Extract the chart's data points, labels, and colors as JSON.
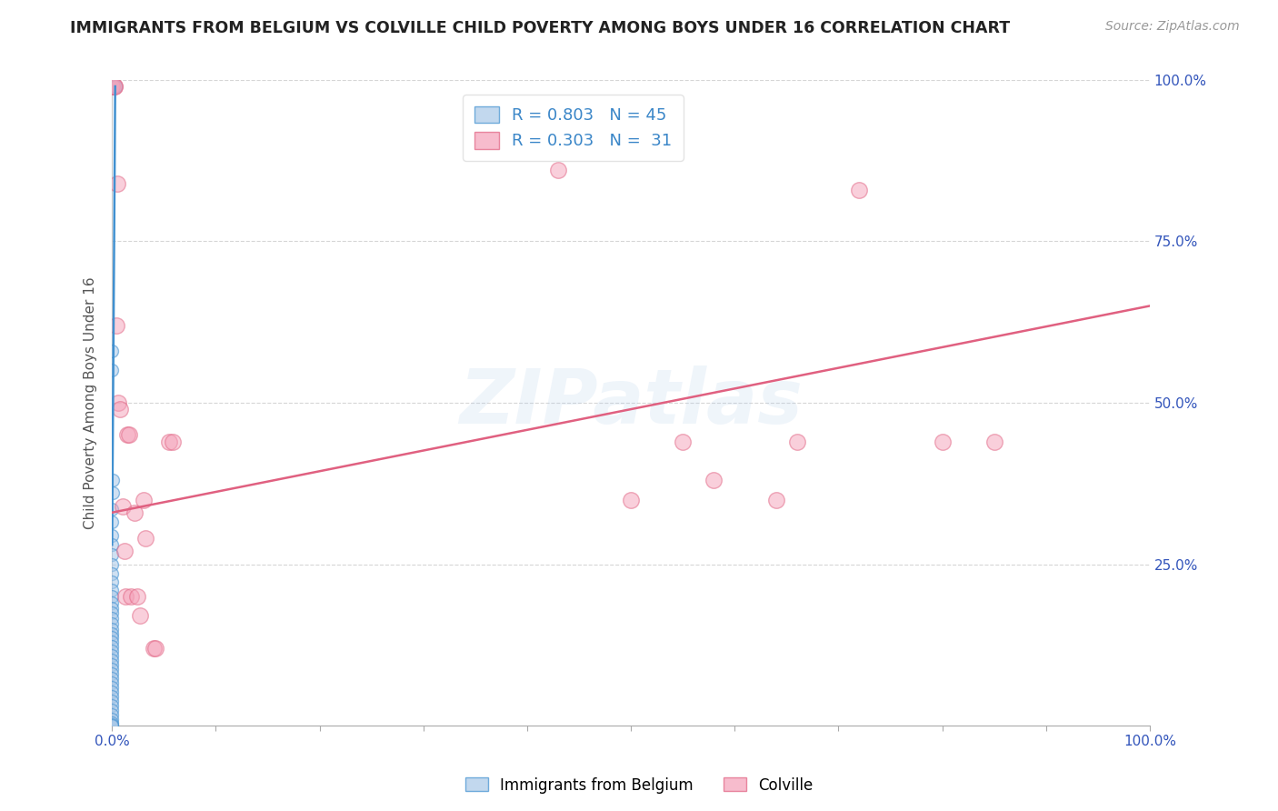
{
  "title": "IMMIGRANTS FROM BELGIUM VS COLVILLE CHILD POVERTY AMONG BOYS UNDER 16 CORRELATION CHART",
  "source": "Source: ZipAtlas.com",
  "ylabel": "Child Poverty Among Boys Under 16",
  "right_yticks": [
    "100.0%",
    "75.0%",
    "50.0%",
    "25.0%"
  ],
  "right_ytick_vals": [
    1.0,
    0.75,
    0.5,
    0.25
  ],
  "watermark": "ZIPatlas",
  "blue_color": "#a8c8e8",
  "pink_color": "#f4a0b8",
  "blue_line_color": "#4090d0",
  "pink_line_color": "#e06080",
  "blue_scatter": [
    [
      0.0,
      0.58
    ],
    [
      0.0,
      0.55
    ],
    [
      0.0003,
      0.38
    ],
    [
      0.0003,
      0.36
    ],
    [
      0.0,
      0.335
    ],
    [
      0.0,
      0.315
    ],
    [
      0.0001,
      0.295
    ],
    [
      0.0001,
      0.28
    ],
    [
      0.0,
      0.265
    ],
    [
      0.0001,
      0.25
    ],
    [
      0.0,
      0.235
    ],
    [
      0.0001,
      0.222
    ],
    [
      0.0,
      0.21
    ],
    [
      0.0001,
      0.2
    ],
    [
      0.0,
      0.19
    ],
    [
      0.0001,
      0.182
    ],
    [
      0.0,
      0.174
    ],
    [
      0.0001,
      0.166
    ],
    [
      0.0,
      0.158
    ],
    [
      0.0001,
      0.15
    ],
    [
      0.0,
      0.143
    ],
    [
      0.0001,
      0.136
    ],
    [
      0.0,
      0.129
    ],
    [
      0.0001,
      0.122
    ],
    [
      0.0,
      0.115
    ],
    [
      0.0001,
      0.108
    ],
    [
      0.0,
      0.101
    ],
    [
      0.0001,
      0.094
    ],
    [
      0.0,
      0.087
    ],
    [
      0.0001,
      0.08
    ],
    [
      0.0,
      0.073
    ],
    [
      0.0001,
      0.066
    ],
    [
      0.0,
      0.059
    ],
    [
      0.0001,
      0.052
    ],
    [
      0.0,
      0.045
    ],
    [
      0.0001,
      0.038
    ],
    [
      0.0,
      0.031
    ],
    [
      0.0001,
      0.024
    ],
    [
      0.0,
      0.017
    ],
    [
      0.0001,
      0.01
    ],
    [
      0.0,
      0.005
    ],
    [
      0.0001,
      0.002
    ],
    [
      0.0,
      0.0
    ],
    [
      0.003,
      0.99
    ],
    [
      0.0032,
      0.99
    ]
  ],
  "pink_scatter": [
    [
      0.0,
      0.99
    ],
    [
      0.002,
      0.99
    ],
    [
      0.002,
      0.99
    ],
    [
      0.004,
      0.62
    ],
    [
      0.005,
      0.84
    ],
    [
      0.006,
      0.5
    ],
    [
      0.008,
      0.49
    ],
    [
      0.01,
      0.34
    ],
    [
      0.012,
      0.27
    ],
    [
      0.013,
      0.2
    ],
    [
      0.015,
      0.45
    ],
    [
      0.016,
      0.45
    ],
    [
      0.018,
      0.2
    ],
    [
      0.022,
      0.33
    ],
    [
      0.024,
      0.2
    ],
    [
      0.027,
      0.17
    ],
    [
      0.03,
      0.35
    ],
    [
      0.032,
      0.29
    ],
    [
      0.04,
      0.12
    ],
    [
      0.042,
      0.12
    ],
    [
      0.055,
      0.44
    ],
    [
      0.058,
      0.44
    ],
    [
      0.43,
      0.86
    ],
    [
      0.5,
      0.35
    ],
    [
      0.55,
      0.44
    ],
    [
      0.58,
      0.38
    ],
    [
      0.64,
      0.35
    ],
    [
      0.66,
      0.44
    ],
    [
      0.72,
      0.83
    ],
    [
      0.8,
      0.44
    ],
    [
      0.85,
      0.44
    ]
  ],
  "blue_line_x": [
    0.0,
    0.003
  ],
  "blue_line_y": [
    0.28,
    0.99
  ],
  "pink_line_x": [
    0.0,
    1.0
  ],
  "pink_line_y": [
    0.33,
    0.65
  ],
  "blue_R": 0.803,
  "blue_N": 45,
  "pink_R": 0.303,
  "pink_N": 31,
  "xlim": [
    0,
    1.0
  ],
  "ylim": [
    0,
    1.0
  ],
  "figsize": [
    14.06,
    8.92
  ],
  "dpi": 100
}
